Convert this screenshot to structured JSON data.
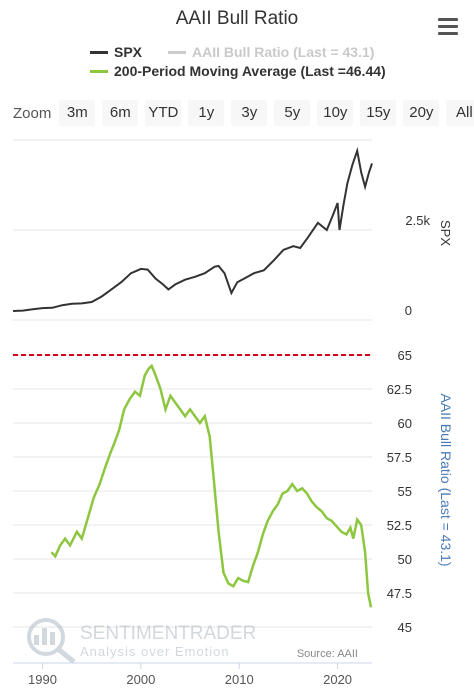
{
  "header": {
    "title": "AAII Bull Ratio",
    "menu_icon": "hamburger-menu-icon"
  },
  "legend": [
    {
      "label": "SPX",
      "color": "#333333"
    },
    {
      "label": "AAII Bull Ratio (Last = 43.1)",
      "color": "#cccccc"
    },
    {
      "label": "200-Period Moving Average (Last =46.44)",
      "color": "#8dc63f"
    }
  ],
  "zoom": {
    "label": "Zoom",
    "buttons": [
      "3m",
      "6m",
      "YTD",
      "1y",
      "3y",
      "5y",
      "10y",
      "15y",
      "20y",
      "All"
    ]
  },
  "watermark": {
    "brand": "SENTIMENTRADER",
    "tagline": "Analysis over Emotion"
  },
  "source": "Source: AAII",
  "chart_data": [
    {
      "type": "line",
      "series": [
        {
          "name": "SPX",
          "color": "#333333",
          "x": [
            1987.0,
            1988.0,
            1989.0,
            1990.0,
            1991.0,
            1992.0,
            1993.0,
            1994.0,
            1995.0,
            1996.0,
            1997.0,
            1998.0,
            1999.0,
            2000.0,
            2000.7,
            2001.5,
            2002.2,
            2002.8,
            2003.5,
            2004.5,
            2005.5,
            2006.5,
            2007.5,
            2007.9,
            2008.5,
            2009.2,
            2009.8,
            2010.5,
            2011.5,
            2012.5,
            2013.5,
            2014.5,
            2015.5,
            2016.2,
            2017.0,
            2018.0,
            2018.9,
            2019.5,
            2020.0,
            2020.2,
            2020.6,
            2021.0,
            2021.5,
            2022.0,
            2022.4,
            2022.8,
            2023.2,
            2023.5
          ],
          "y": [
            250,
            260,
            300,
            330,
            340,
            410,
            450,
            460,
            500,
            650,
            850,
            1050,
            1300,
            1420,
            1400,
            1150,
            1000,
            850,
            990,
            1120,
            1200,
            1300,
            1480,
            1500,
            1300,
            750,
            1050,
            1150,
            1300,
            1380,
            1650,
            1950,
            2050,
            2000,
            2300,
            2700,
            2500,
            2900,
            3250,
            2500,
            3200,
            3800,
            4300,
            4700,
            4100,
            3700,
            4100,
            4350
          ],
          "y_axis": {
            "title": "SPX",
            "ticks": [
              "0",
              "2.5k"
            ]
          }
        }
      ]
    },
    {
      "type": "line",
      "series": [
        {
          "name": "200-Period Moving Average (Last =46.44)",
          "color": "#8dc63f",
          "x": [
            1990.9,
            1991.3,
            1991.8,
            1992.3,
            1992.8,
            1993.5,
            1994.0,
            1994.6,
            1995.2,
            1995.8,
            1996.4,
            1996.9,
            1997.3,
            1997.8,
            1998.3,
            1998.9,
            1999.4,
            1999.9,
            2000.4,
            2000.8,
            2001.1,
            2001.5,
            2002.0,
            2002.5,
            2003.0,
            2003.5,
            2004.0,
            2004.5,
            2005.0,
            2005.5,
            2006.0,
            2006.5,
            2007.0,
            2007.4,
            2007.9,
            2008.4,
            2008.9,
            2009.4,
            2009.9,
            2010.4,
            2010.9,
            2011.4,
            2011.9,
            2012.4,
            2012.9,
            2013.4,
            2013.9,
            2014.4,
            2014.9,
            2015.4,
            2015.9,
            2016.4,
            2016.9,
            2017.4,
            2017.9,
            2018.4,
            2018.9,
            2019.4,
            2019.9,
            2020.4,
            2020.9,
            2021.3,
            2021.6,
            2022.0,
            2022.4,
            2022.8,
            2023.1,
            2023.4
          ],
          "y": [
            50.5,
            50.2,
            51.0,
            51.5,
            51.0,
            52.0,
            51.5,
            53.0,
            54.5,
            55.5,
            56.8,
            57.8,
            58.5,
            59.5,
            61.0,
            61.8,
            62.3,
            62.0,
            63.5,
            64.0,
            64.2,
            63.5,
            62.5,
            61.0,
            62.0,
            61.5,
            61.0,
            60.5,
            61.0,
            60.5,
            60.0,
            60.5,
            59.0,
            56.0,
            52.0,
            49.0,
            48.2,
            48.0,
            48.6,
            48.4,
            48.3,
            49.5,
            50.5,
            51.8,
            52.8,
            53.5,
            54.0,
            54.8,
            55.0,
            55.5,
            55.0,
            55.2,
            54.8,
            54.2,
            53.8,
            53.5,
            53.0,
            52.8,
            52.4,
            52.0,
            51.8,
            52.3,
            51.5,
            52.9,
            52.5,
            50.5,
            47.5,
            46.44
          ],
          "y_axis": {
            "title": "AAII Bull Ratio (Last = 43.1)",
            "ticks": [
              "45",
              "47.5",
              "50",
              "52.5",
              "55",
              "57.5",
              "60",
              "62.5",
              "65"
            ]
          },
          "reference_line": {
            "value": 65,
            "color": "#d0021b",
            "style": "dashed"
          }
        }
      ],
      "x_axis": {
        "ticks": [
          "1990",
          "2000",
          "2010",
          "2020"
        ],
        "range": [
          1987,
          2023.5
        ]
      }
    }
  ]
}
